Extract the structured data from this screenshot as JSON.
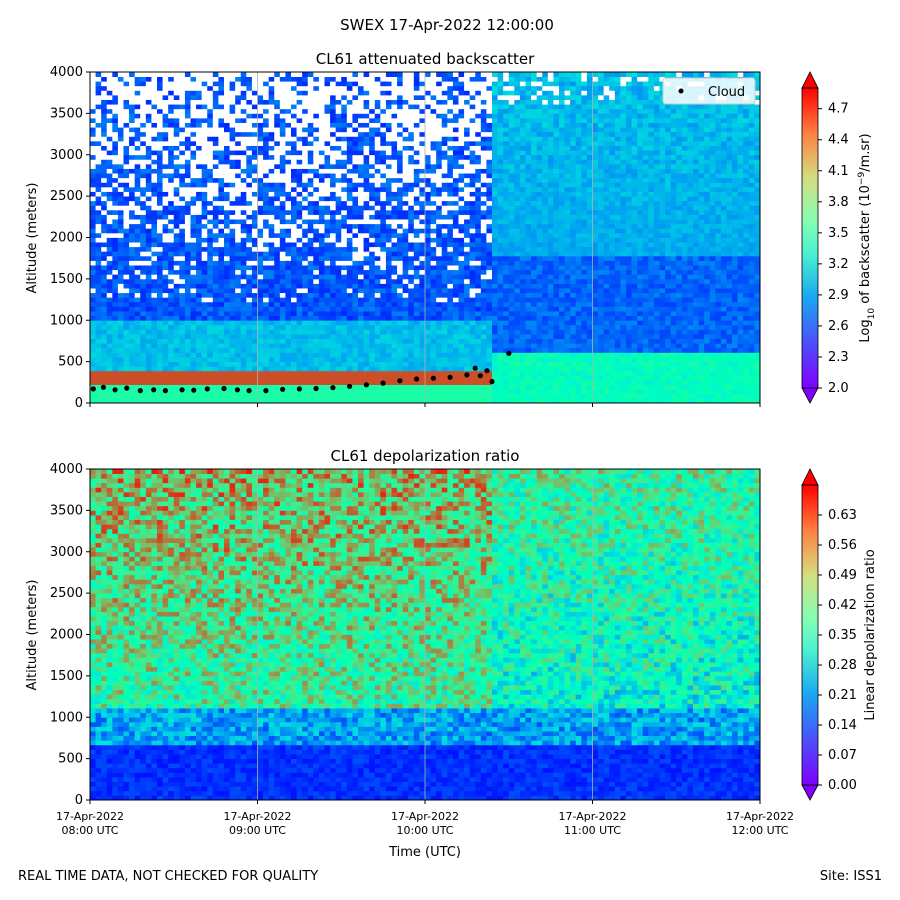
{
  "figure": {
    "suptitle": "SWEX 17-Apr-2022 12:00:00",
    "footer_left": "REAL TIME DATA, NOT CHECKED FOR QUALITY",
    "footer_right": "Site: ISS1"
  },
  "chart_data": [
    {
      "type": "heatmap",
      "title": "CL61 attenuated backscatter",
      "ylabel": "Altitude (meters)",
      "xlabel": "",
      "ylim": [
        0,
        4000
      ],
      "yticks": [
        0,
        500,
        1000,
        1500,
        2000,
        2500,
        3000,
        3500,
        4000
      ],
      "xticks": [
        0,
        1,
        2,
        3,
        4
      ],
      "colorbar": {
        "label_prefix": "Log",
        "label_sub": "10",
        "label_mid": " of backscatter (10",
        "label_sup": "−9",
        "label_suffix": "/m.sr)",
        "range": [
          2.0,
          4.9
        ],
        "ticks": [
          "2.0",
          "2.3",
          "2.6",
          "2.9",
          "3.2",
          "3.5",
          "3.8",
          "4.1",
          "4.4",
          "4.7"
        ]
      },
      "legend": {
        "entries": [
          "Cloud"
        ],
        "placement": "top-right"
      },
      "cloud_base": [
        {
          "t": 0.02,
          "alt": 170
        },
        {
          "t": 0.08,
          "alt": 190
        },
        {
          "t": 0.15,
          "alt": 160
        },
        {
          "t": 0.22,
          "alt": 180
        },
        {
          "t": 0.3,
          "alt": 150
        },
        {
          "t": 0.38,
          "alt": 160
        },
        {
          "t": 0.45,
          "alt": 150
        },
        {
          "t": 0.55,
          "alt": 160
        },
        {
          "t": 0.62,
          "alt": 155
        },
        {
          "t": 0.7,
          "alt": 170
        },
        {
          "t": 0.8,
          "alt": 175
        },
        {
          "t": 0.88,
          "alt": 160
        },
        {
          "t": 0.95,
          "alt": 150
        },
        {
          "t": 1.05,
          "alt": 150
        },
        {
          "t": 1.15,
          "alt": 165
        },
        {
          "t": 1.25,
          "alt": 170
        },
        {
          "t": 1.35,
          "alt": 175
        },
        {
          "t": 1.45,
          "alt": 185
        },
        {
          "t": 1.55,
          "alt": 200
        },
        {
          "t": 1.65,
          "alt": 220
        },
        {
          "t": 1.75,
          "alt": 240
        },
        {
          "t": 1.85,
          "alt": 270
        },
        {
          "t": 1.95,
          "alt": 290
        },
        {
          "t": 2.05,
          "alt": 300
        },
        {
          "t": 2.15,
          "alt": 310
        },
        {
          "t": 2.25,
          "alt": 340
        },
        {
          "t": 2.3,
          "alt": 420
        },
        {
          "t": 2.33,
          "alt": 330
        },
        {
          "t": 2.37,
          "alt": 390
        },
        {
          "t": 2.4,
          "alt": 260
        },
        {
          "t": 2.5,
          "alt": 600
        }
      ]
    },
    {
      "type": "heatmap",
      "title": "CL61 depolarization ratio",
      "ylabel": "Altitude (meters)",
      "xlabel": "Time (UTC)",
      "ylim": [
        0,
        4000
      ],
      "yticks": [
        0,
        500,
        1000,
        1500,
        2000,
        2500,
        3000,
        3500,
        4000
      ],
      "xticks": [
        0,
        1,
        2,
        3,
        4
      ],
      "xticklabels": [
        [
          "17-Apr-2022",
          "08:00 UTC"
        ],
        [
          "17-Apr-2022",
          "09:00 UTC"
        ],
        [
          "17-Apr-2022",
          "10:00 UTC"
        ],
        [
          "17-Apr-2022",
          "11:00 UTC"
        ],
        [
          "17-Apr-2022",
          "12:00 UTC"
        ]
      ],
      "colorbar": {
        "label": "Linear depolarization ratio",
        "range": [
          0.0,
          0.7
        ],
        "ticks": [
          "0.00",
          "0.07",
          "0.14",
          "0.21",
          "0.28",
          "0.35",
          "0.42",
          "0.49",
          "0.56",
          "0.63"
        ]
      }
    }
  ]
}
